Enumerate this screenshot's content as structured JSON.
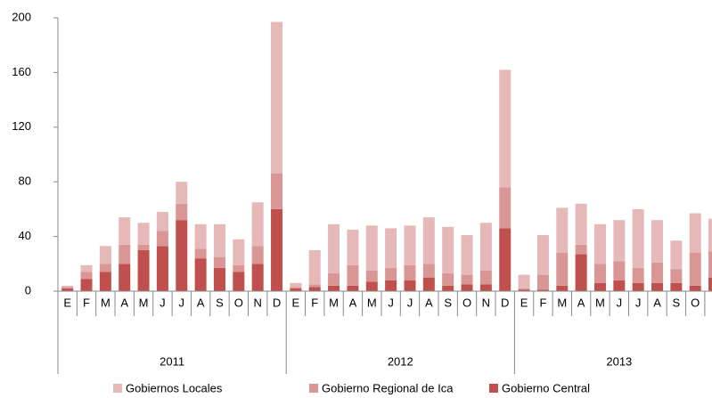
{
  "chart_data": {
    "type": "stacked_bar",
    "categories": [
      "E",
      "F",
      "M",
      "A",
      "M",
      "J",
      "J",
      "A",
      "S",
      "O",
      "N",
      "D",
      "E",
      "F",
      "M",
      "A",
      "M",
      "J",
      "J",
      "A",
      "S",
      "O",
      "N",
      "D",
      "E",
      "F",
      "M",
      "A",
      "M",
      "J",
      "J",
      "A",
      "S",
      "O",
      null
    ],
    "groups": [
      {
        "label": "2011",
        "count": 12
      },
      {
        "label": "2012",
        "count": 12
      },
      {
        "label": "2013",
        "count": 11
      }
    ],
    "series": [
      {
        "name": "Gobierno Central",
        "color": "#c0504d",
        "values": [
          2,
          9,
          14,
          20,
          30,
          33,
          52,
          24,
          17,
          14,
          20,
          60,
          2,
          3,
          4,
          4,
          7,
          8,
          8,
          10,
          4,
          5,
          5,
          46,
          1,
          1,
          4,
          27,
          6,
          8,
          6,
          6,
          6,
          4,
          10
        ]
      },
      {
        "name": "Gobierno Regional de Ica",
        "color": "#d99694",
        "values": [
          1,
          5,
          6,
          14,
          4,
          11,
          12,
          7,
          8,
          5,
          13,
          26,
          1,
          2,
          9,
          15,
          8,
          9,
          11,
          10,
          9,
          7,
          10,
          30,
          1,
          11,
          24,
          7,
          14,
          14,
          11,
          15,
          10,
          24,
          19
        ]
      },
      {
        "name": "Gobiernos Locales",
        "color": "#e6b9b8",
        "values": [
          1,
          5,
          13,
          20,
          16,
          14,
          16,
          18,
          24,
          19,
          32,
          111,
          3,
          25,
          36,
          26,
          33,
          29,
          29,
          34,
          34,
          29,
          35,
          86,
          10,
          29,
          33,
          30,
          29,
          30,
          43,
          31,
          21,
          29,
          24
        ]
      }
    ],
    "ylim": [
      0,
      200
    ],
    "yticks": [
      0,
      40,
      80,
      120,
      160,
      200
    ],
    "legend": "bottom"
  }
}
